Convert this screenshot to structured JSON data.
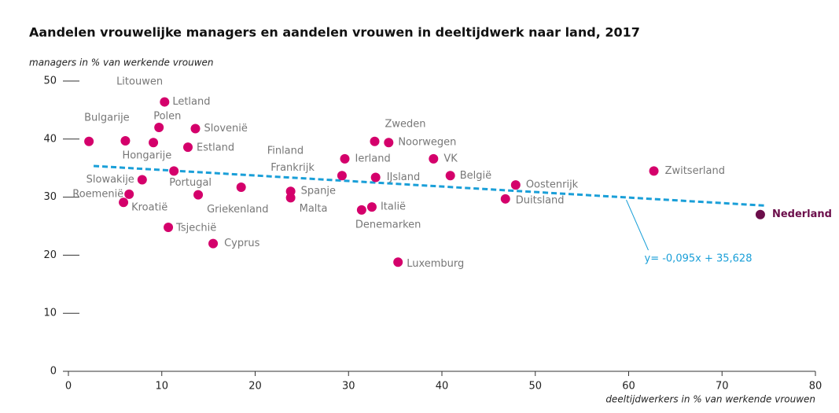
{
  "chart_data": {
    "type": "scatter",
    "title": "Aandelen vrouwelijke managers en aandelen vrouwen in deeltijdwerk naar land, 2017",
    "y_label": "managers in % van werkende vrouwen",
    "x_label": "deeltijdwerkers in % van werkende vrouwen",
    "xlim": [
      0,
      80
    ],
    "xticks": [
      0,
      10,
      20,
      30,
      40,
      50,
      60,
      70,
      80
    ],
    "ylim": [
      0,
      50
    ],
    "yticks": [
      0,
      10,
      20,
      30,
      40,
      50
    ],
    "series": [
      {
        "name": "landen",
        "color": "#d4006b",
        "labels": [
          "Bulgarije",
          "Hongarije",
          "Litouwen",
          "Letland",
          "Polen",
          "Slovenië",
          "Estland",
          "Slowakije",
          "Portugal",
          "Roemenië",
          "Kroatië",
          "Griekenland",
          "Tsjechië",
          "Cyprus",
          "Finland",
          "Spanje",
          "Malta",
          "Frankrijk",
          "Ierland",
          "Zweden",
          "Noorwegen",
          "IJsland",
          "Italië",
          "Denemarken",
          "Luxemburg",
          "VK",
          "België",
          "Oostenrijk",
          "Duitsland",
          "Zwitserland"
        ],
        "x": [
          2.2,
          6.1,
          9.1,
          10.3,
          9.7,
          13.6,
          12.8,
          7.9,
          11.3,
          6.5,
          5.9,
          13.9,
          10.7,
          15.5,
          18.5,
          23.8,
          23.8,
          29.3,
          29.6,
          32.8,
          34.3,
          32.9,
          32.5,
          31.4,
          35.3,
          39.1,
          40.9,
          47.9,
          46.8,
          62.7
        ],
        "values": [
          39.6,
          39.7,
          39.4,
          46.4,
          42.0,
          41.8,
          38.6,
          33.0,
          34.5,
          30.5,
          29.1,
          30.4,
          24.8,
          22.0,
          31.7,
          31.0,
          29.9,
          33.7,
          36.6,
          39.6,
          39.4,
          33.4,
          28.3,
          27.8,
          18.8,
          36.6,
          33.7,
          32.1,
          29.7,
          34.5
        ]
      },
      {
        "name": "Nederland",
        "color": "#6b0d4a",
        "labels": [
          "Nederland"
        ],
        "x": [
          74.1
        ],
        "values": [
          27.0
        ]
      }
    ],
    "trend": {
      "label": "y= -0,095x + 35,628",
      "slope": -0.095,
      "intercept": 35.628,
      "x": [
        2.7,
        74.5
      ],
      "color": "#1a9fd8"
    }
  }
}
